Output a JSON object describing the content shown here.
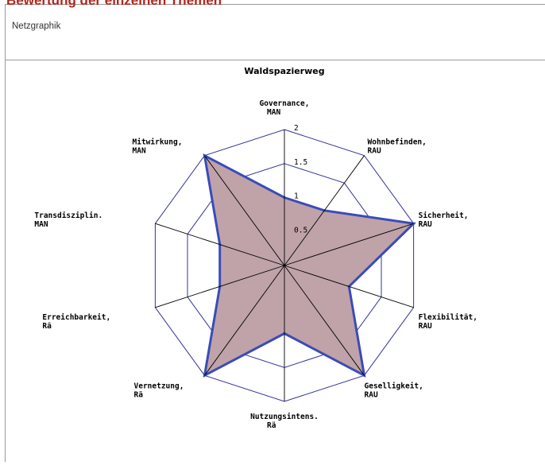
{
  "page": {
    "heading": "Bewertung der einzelnen Themen",
    "section_label": "Netzgraphik"
  },
  "colors": {
    "heading": "#b2261c",
    "grid": "#33339a",
    "spoke": "#000000",
    "series_fill": "#bfa3a9",
    "series_stroke": "#3b4bb8"
  },
  "chart_data": {
    "type": "radar",
    "title": "Waldspazierweg",
    "axes": [
      {
        "name": "Governance,",
        "group": "MAN"
      },
      {
        "name": "Wohnbefinden,",
        "group": "RAU"
      },
      {
        "name": "Sicherheit,",
        "group": "RAU"
      },
      {
        "name": "Flexibilität,",
        "group": "RAU"
      },
      {
        "name": "Geselligkeit,",
        "group": "RAU"
      },
      {
        "name": "Nutzungsintens.",
        "group": "Rä"
      },
      {
        "name": "Vernetzung,",
        "group": "Rä"
      },
      {
        "name": "Erreichbarkeit,",
        "group": "Rä"
      },
      {
        "name": "Transdisziplin.",
        "group": "MAN"
      },
      {
        "name": "Mitwirkung,",
        "group": "MAN"
      }
    ],
    "range": [
      0,
      2
    ],
    "ticks": [
      0.5,
      1,
      1.5,
      2
    ],
    "tick_labels": [
      "0.5",
      "1",
      "1.5",
      "2"
    ],
    "rings": [
      0.5,
      1,
      1.5,
      2
    ],
    "grid": true,
    "series": [
      {
        "values": [
          1,
          1,
          2,
          1,
          2,
          1,
          2,
          1,
          1,
          2
        ]
      }
    ]
  }
}
